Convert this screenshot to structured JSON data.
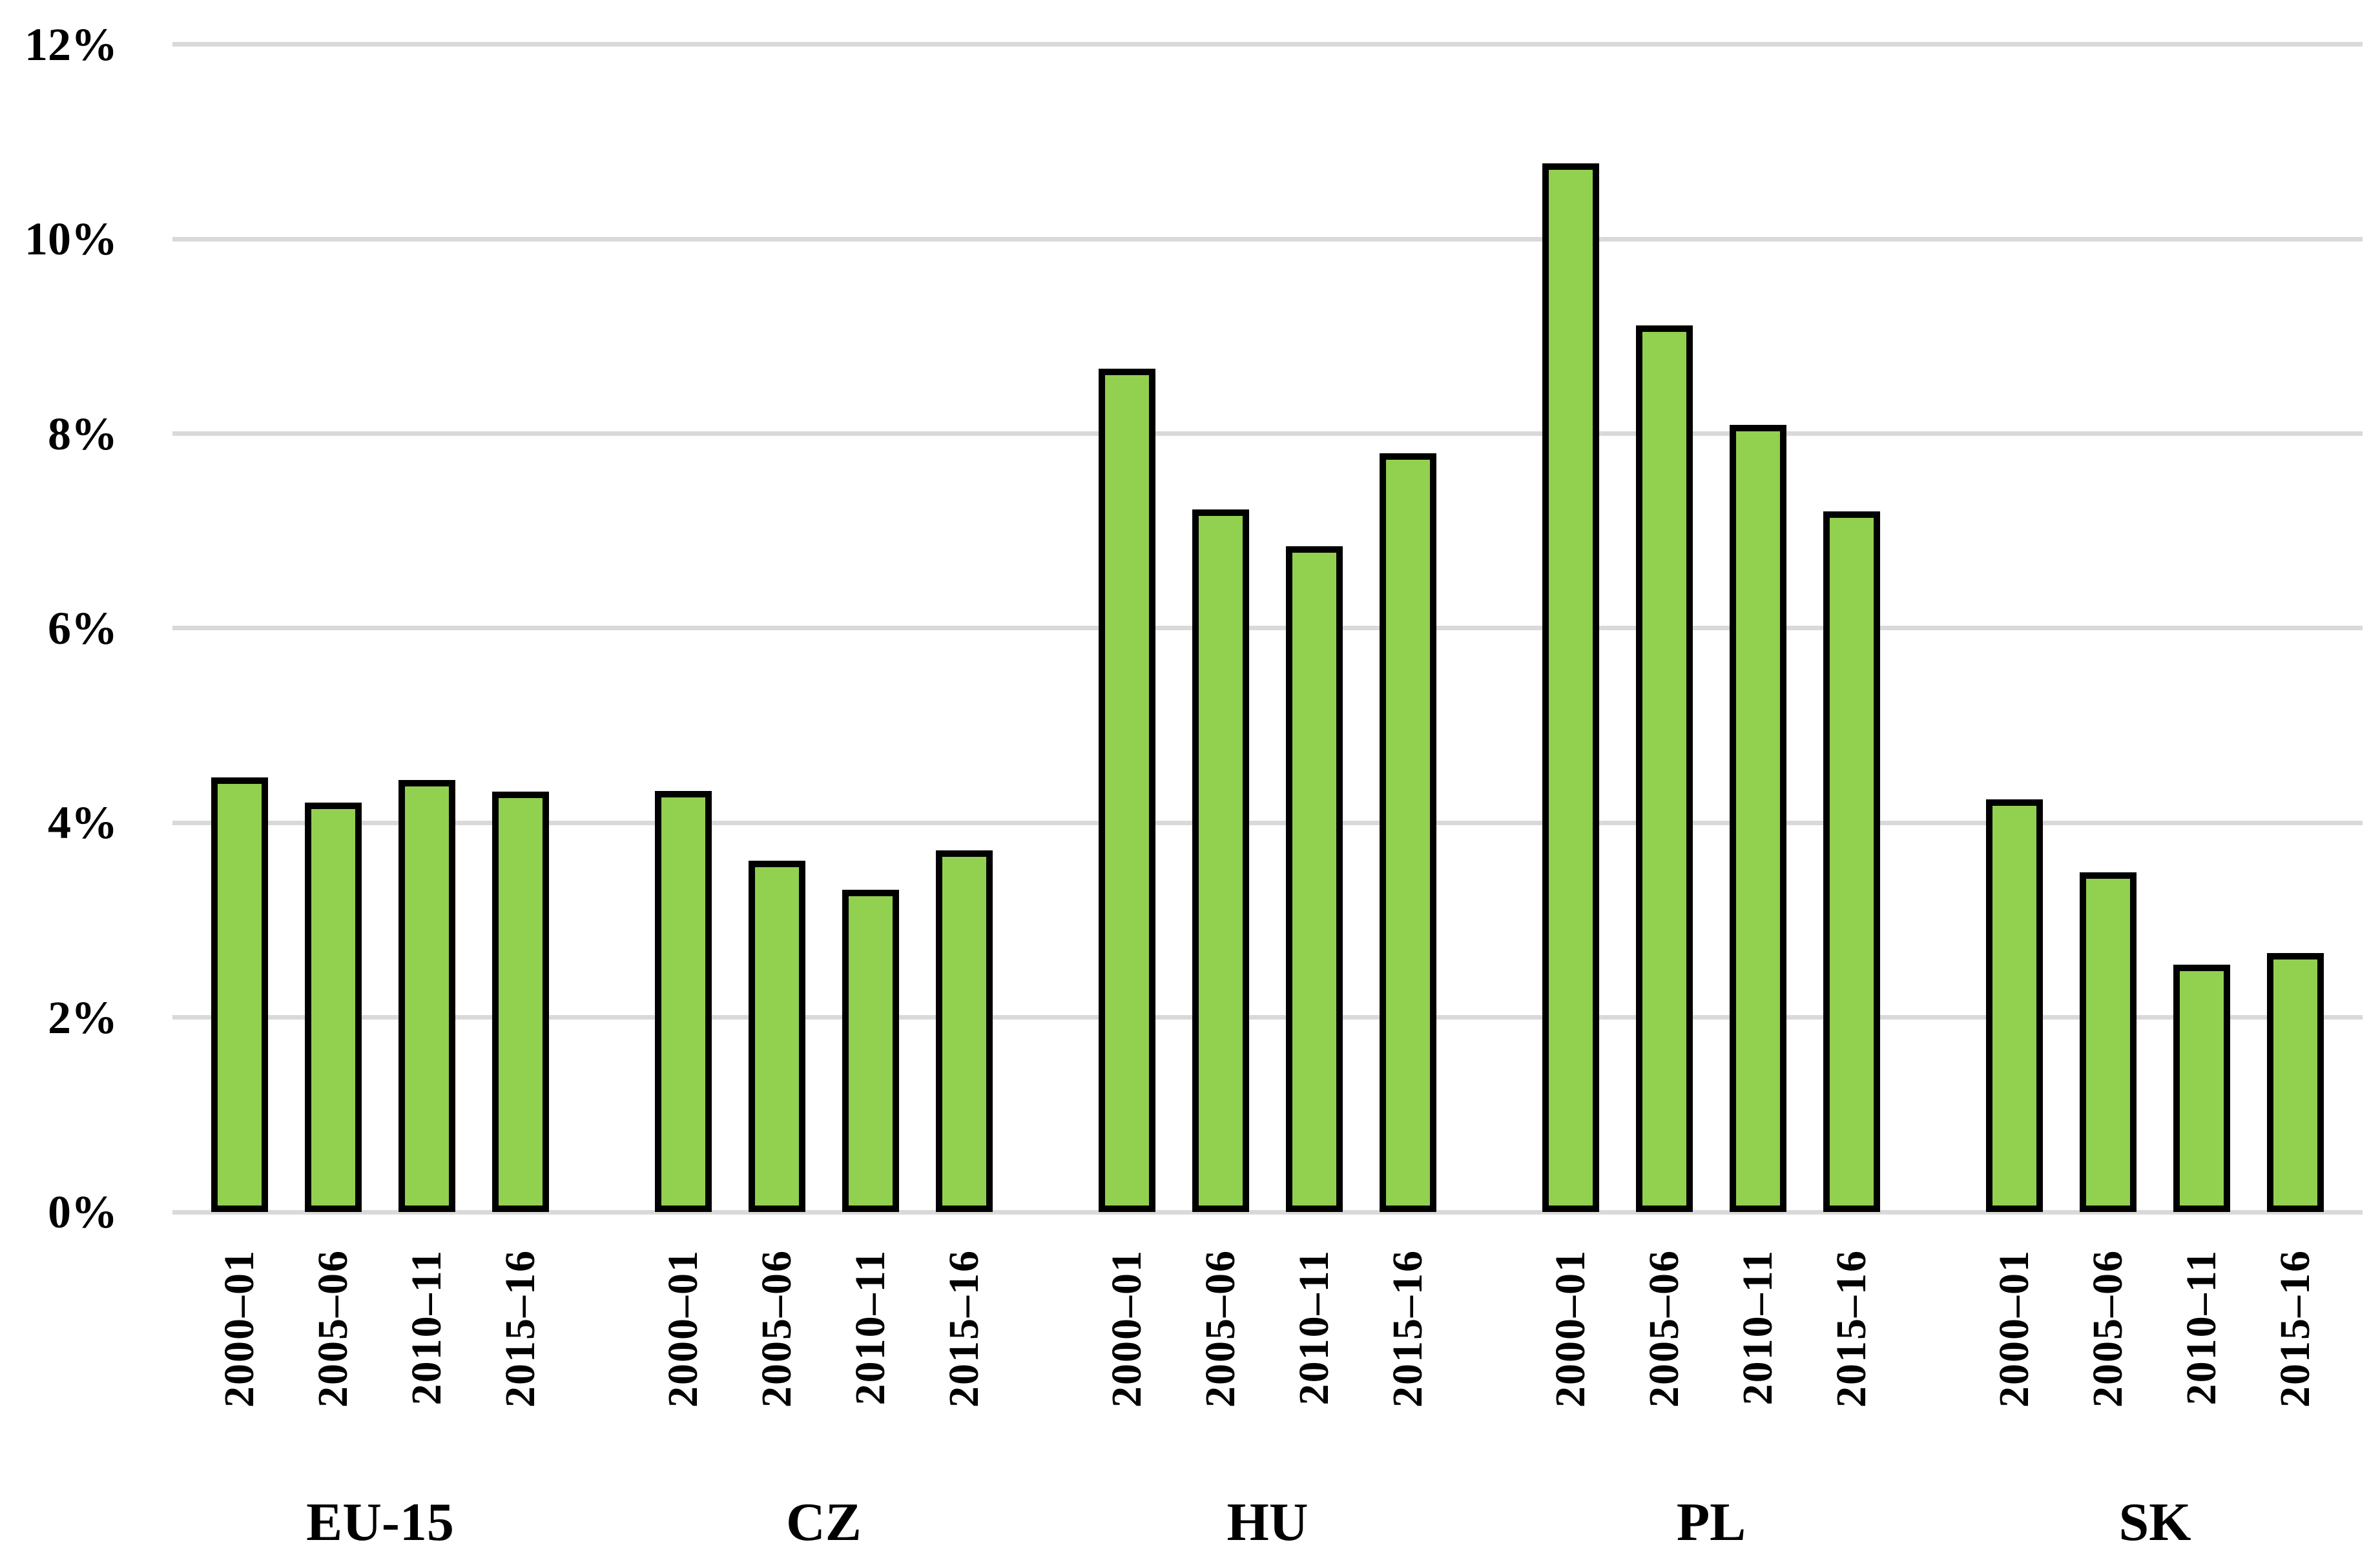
{
  "chart_data": {
    "type": "bar",
    "title": "",
    "xlabel": "",
    "ylabel": "",
    "grid": "horizontal",
    "legend_position": "none",
    "ylim": [
      0,
      12
    ],
    "y_axis": {
      "tick_step": 2,
      "tick_format": "percent",
      "ticks": [
        {
          "value": 0,
          "label": "0%"
        },
        {
          "value": 2,
          "label": "2%"
        },
        {
          "value": 4,
          "label": "4%"
        },
        {
          "value": 6,
          "label": "6%"
        },
        {
          "value": 8,
          "label": "8%"
        },
        {
          "value": 10,
          "label": "10%"
        },
        {
          "value": 12,
          "label": "12%"
        }
      ]
    },
    "periods": [
      "2000–01",
      "2005–06",
      "2010–11",
      "2015–16"
    ],
    "x_tick_rotation": 90,
    "groups": [
      {
        "label": "EU-15",
        "values": [
          4.47,
          4.21,
          4.44,
          4.32
        ]
      },
      {
        "label": "CZ",
        "values": [
          4.33,
          3.61,
          3.31,
          3.72
        ]
      },
      {
        "label": "HU",
        "values": [
          8.67,
          7.22,
          6.84,
          7.8
        ]
      },
      {
        "label": "PL",
        "values": [
          10.78,
          9.11,
          8.09,
          7.2
        ]
      },
      {
        "label": "SK",
        "values": [
          4.24,
          3.49,
          2.54,
          2.66
        ]
      }
    ],
    "colors": {
      "bar_fill": "#92D050",
      "bar_border": "#000000",
      "gridline": "#D9D9D9",
      "background": "#FFFFFF",
      "text": "#000000"
    }
  }
}
